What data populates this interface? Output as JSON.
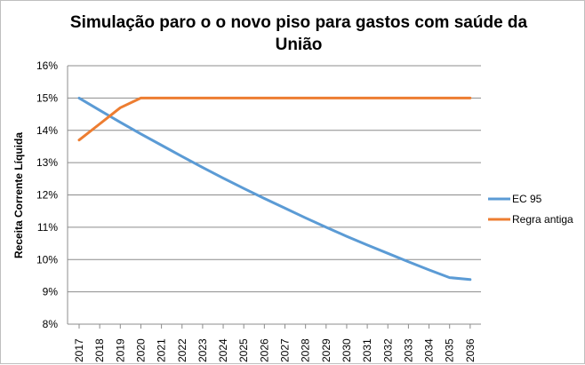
{
  "chart_data": {
    "type": "line",
    "title_line1": "Simulação paro o o novo piso para gastos com saúde da",
    "title_line2": "União",
    "xlabel": "",
    "ylabel": "Receita Corrente Líquida",
    "x": [
      "2017",
      "2018",
      "2019",
      "2020",
      "2021",
      "2022",
      "2023",
      "2024",
      "2025",
      "2026",
      "2027",
      "2028",
      "2029",
      "2030",
      "2031",
      "2032",
      "2033",
      "2034",
      "2035",
      "2036"
    ],
    "ylim": [
      0.08,
      0.16
    ],
    "yticks": [
      {
        "value": 0.16,
        "label": "16%"
      },
      {
        "value": 0.15,
        "label": "15%"
      },
      {
        "value": 0.14,
        "label": "14%"
      },
      {
        "value": 0.13,
        "label": "13%"
      },
      {
        "value": 0.12,
        "label": "12%"
      },
      {
        "value": 0.11,
        "label": "11%"
      },
      {
        "value": 0.1,
        "label": "10%"
      },
      {
        "value": 0.09,
        "label": "9%"
      },
      {
        "value": 0.08,
        "label": "8%"
      }
    ],
    "grid": "horizontal",
    "legend_position": "right",
    "series": [
      {
        "name": "EC 95",
        "color": "#5b9bd5",
        "values": [
          0.15,
          0.1462,
          0.1425,
          0.1389,
          0.1354,
          0.1319,
          0.1285,
          0.1252,
          0.122,
          0.1189,
          0.1159,
          0.1129,
          0.11,
          0.1072,
          0.1045,
          0.1019,
          0.0993,
          0.0968,
          0.0944,
          0.0938
        ]
      },
      {
        "name": "Regra antiga",
        "color": "#ed7d31",
        "values": [
          0.137,
          0.142,
          0.147,
          0.15,
          0.15,
          0.15,
          0.15,
          0.15,
          0.15,
          0.15,
          0.15,
          0.15,
          0.15,
          0.15,
          0.15,
          0.15,
          0.15,
          0.15,
          0.15,
          0.15
        ]
      }
    ]
  }
}
